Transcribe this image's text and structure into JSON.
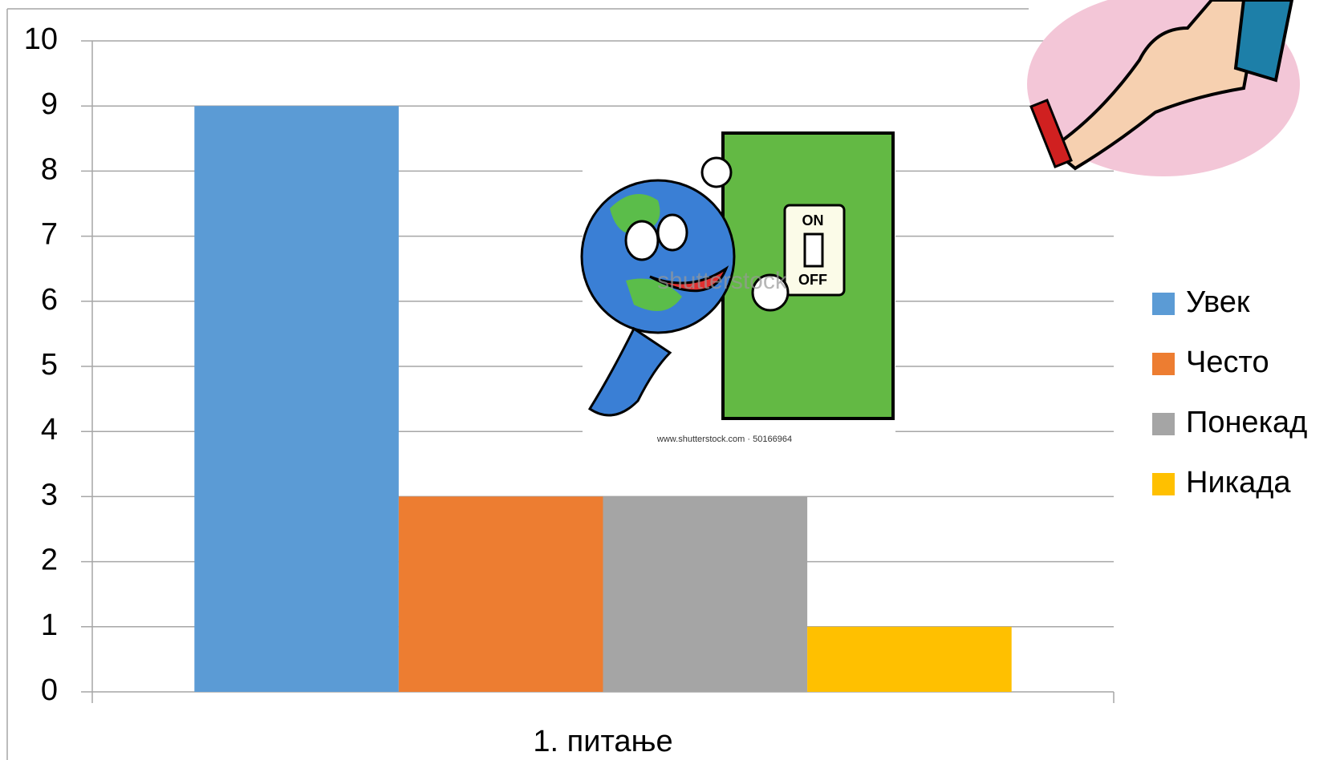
{
  "chart_data": {
    "type": "bar",
    "categories": [
      "1. питање"
    ],
    "series": [
      {
        "name": "Увек",
        "color": "#5b9bd5",
        "values": [
          9
        ]
      },
      {
        "name": "Често",
        "color": "#ed7d31",
        "values": [
          3
        ]
      },
      {
        "name": "Понекад",
        "color": "#a5a5a5",
        "values": [
          3
        ]
      },
      {
        "name": "Никада",
        "color": "#ffc000",
        "values": [
          1
        ]
      }
    ],
    "ylim": [
      0,
      10
    ],
    "yticks": [
      0,
      1,
      2,
      3,
      4,
      5,
      6,
      7,
      8,
      9,
      10
    ],
    "grid": true,
    "legend": "right"
  },
  "illustration": {
    "switch_on": "ON",
    "switch_off": "OFF",
    "watermark": "shutterstock",
    "credit": "www.shutterstock.com · 50166964"
  }
}
